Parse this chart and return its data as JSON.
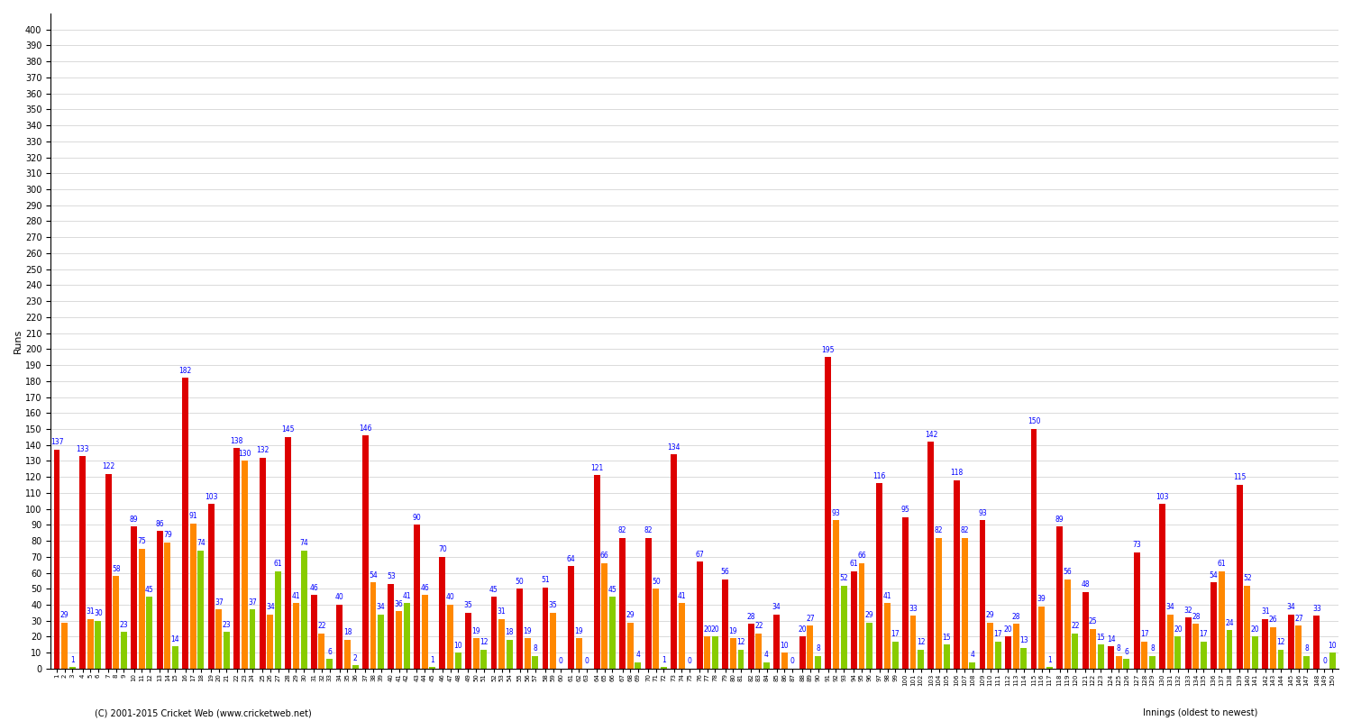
{
  "title": "",
  "ylabel": "Runs",
  "footer": "(C) 2001-2015 Cricket Web (www.cricketweb.net)",
  "footer2": "Innings (oldest to newest)",
  "ylim": [
    0,
    410
  ],
  "yticks": [
    0,
    10,
    20,
    30,
    40,
    50,
    60,
    70,
    80,
    90,
    100,
    110,
    120,
    130,
    140,
    150,
    160,
    170,
    180,
    190,
    200,
    210,
    220,
    230,
    240,
    250,
    260,
    270,
    280,
    290,
    300,
    310,
    320,
    330,
    340,
    350,
    360,
    370,
    380,
    390,
    400
  ],
  "bar_colors": [
    "#dd0000",
    "#ff8800",
    "#88cc00"
  ],
  "innings": [
    {
      "num": "1",
      "val": 137,
      "color_idx": 0
    },
    {
      "num": "2",
      "val": 29,
      "color_idx": 1
    },
    {
      "num": "3",
      "val": 1,
      "color_idx": 2
    },
    {
      "num": "4",
      "val": 133,
      "color_idx": 0
    },
    {
      "num": "5",
      "val": 31,
      "color_idx": 1
    },
    {
      "num": "6",
      "val": 30,
      "color_idx": 2
    },
    {
      "num": "7",
      "val": 122,
      "color_idx": 0
    },
    {
      "num": "8",
      "val": 58,
      "color_idx": 1
    },
    {
      "num": "9",
      "val": 23,
      "color_idx": 2
    },
    {
      "num": "10",
      "val": 89,
      "color_idx": 0
    },
    {
      "num": "11",
      "val": 75,
      "color_idx": 1
    },
    {
      "num": "12",
      "val": 45,
      "color_idx": 2
    },
    {
      "num": "13",
      "val": 86,
      "color_idx": 0
    },
    {
      "num": "14",
      "val": 79,
      "color_idx": 1
    },
    {
      "num": "15",
      "val": 14,
      "color_idx": 2
    },
    {
      "num": "16",
      "val": 182,
      "color_idx": 0
    },
    {
      "num": "17",
      "val": 91,
      "color_idx": 1
    },
    {
      "num": "18",
      "val": 74,
      "color_idx": 2
    },
    {
      "num": "19",
      "val": 103,
      "color_idx": 0
    },
    {
      "num": "20",
      "val": 37,
      "color_idx": 1
    },
    {
      "num": "21",
      "val": 23,
      "color_idx": 2
    },
    {
      "num": "22",
      "val": 138,
      "color_idx": 0
    },
    {
      "num": "23",
      "val": 130,
      "color_idx": 1
    },
    {
      "num": "24",
      "val": 37,
      "color_idx": 2
    },
    {
      "num": "25",
      "val": 132,
      "color_idx": 0
    },
    {
      "num": "26",
      "val": 34,
      "color_idx": 1
    },
    {
      "num": "27",
      "val": 61,
      "color_idx": 2
    },
    {
      "num": "28",
      "val": 145,
      "color_idx": 0
    },
    {
      "num": "29",
      "val": 41,
      "color_idx": 1
    },
    {
      "num": "30",
      "val": 74,
      "color_idx": 2
    },
    {
      "num": "31",
      "val": 46,
      "color_idx": 0
    },
    {
      "num": "32",
      "val": 22,
      "color_idx": 1
    },
    {
      "num": "33",
      "val": 6,
      "color_idx": 2
    },
    {
      "num": "34",
      "val": 40,
      "color_idx": 0
    },
    {
      "num": "35",
      "val": 18,
      "color_idx": 1
    },
    {
      "num": "36",
      "val": 2,
      "color_idx": 2
    },
    {
      "num": "37",
      "val": 146,
      "color_idx": 0
    },
    {
      "num": "38",
      "val": 54,
      "color_idx": 1
    },
    {
      "num": "39",
      "val": 34,
      "color_idx": 2
    },
    {
      "num": "40",
      "val": 53,
      "color_idx": 0
    },
    {
      "num": "41",
      "val": 36,
      "color_idx": 1
    },
    {
      "num": "42",
      "val": 41,
      "color_idx": 2
    },
    {
      "num": "43",
      "val": 90,
      "color_idx": 0
    },
    {
      "num": "44",
      "val": 46,
      "color_idx": 1
    },
    {
      "num": "45",
      "val": 1,
      "color_idx": 2
    },
    {
      "num": "46",
      "val": 70,
      "color_idx": 0
    },
    {
      "num": "47",
      "val": 40,
      "color_idx": 1
    },
    {
      "num": "48",
      "val": 10,
      "color_idx": 2
    },
    {
      "num": "49",
      "val": 35,
      "color_idx": 0
    },
    {
      "num": "50",
      "val": 19,
      "color_idx": 1
    },
    {
      "num": "51",
      "val": 12,
      "color_idx": 2
    },
    {
      "num": "52",
      "val": 45,
      "color_idx": 0
    },
    {
      "num": "53",
      "val": 31,
      "color_idx": 1
    },
    {
      "num": "54",
      "val": 18,
      "color_idx": 2
    },
    {
      "num": "55",
      "val": 50,
      "color_idx": 0
    },
    {
      "num": "56",
      "val": 19,
      "color_idx": 1
    },
    {
      "num": "57",
      "val": 8,
      "color_idx": 2
    },
    {
      "num": "58",
      "val": 51,
      "color_idx": 0
    },
    {
      "num": "59",
      "val": 35,
      "color_idx": 1
    },
    {
      "num": "60",
      "val": 0,
      "color_idx": 2
    },
    {
      "num": "61",
      "val": 64,
      "color_idx": 0
    },
    {
      "num": "62",
      "val": 19,
      "color_idx": 1
    },
    {
      "num": "63",
      "val": 0,
      "color_idx": 2
    },
    {
      "num": "64",
      "val": 121,
      "color_idx": 0
    },
    {
      "num": "65",
      "val": 66,
      "color_idx": 1
    },
    {
      "num": "66",
      "val": 45,
      "color_idx": 2
    },
    {
      "num": "67",
      "val": 82,
      "color_idx": 0
    },
    {
      "num": "68",
      "val": 29,
      "color_idx": 1
    },
    {
      "num": "69",
      "val": 4,
      "color_idx": 2
    },
    {
      "num": "70",
      "val": 82,
      "color_idx": 0
    },
    {
      "num": "71",
      "val": 50,
      "color_idx": 1
    },
    {
      "num": "72",
      "val": 1,
      "color_idx": 2
    },
    {
      "num": "73",
      "val": 134,
      "color_idx": 0
    },
    {
      "num": "74",
      "val": 41,
      "color_idx": 1
    },
    {
      "num": "75",
      "val": 0,
      "color_idx": 2
    },
    {
      "num": "76",
      "val": 67,
      "color_idx": 0
    },
    {
      "num": "77",
      "val": 20,
      "color_idx": 1
    },
    {
      "num": "78",
      "val": 20,
      "color_idx": 2
    },
    {
      "num": "79",
      "val": 56,
      "color_idx": 0
    },
    {
      "num": "80",
      "val": 19,
      "color_idx": 1
    },
    {
      "num": "81",
      "val": 12,
      "color_idx": 2
    },
    {
      "num": "82",
      "val": 28,
      "color_idx": 0
    },
    {
      "num": "83",
      "val": 22,
      "color_idx": 1
    },
    {
      "num": "84",
      "val": 4,
      "color_idx": 2
    },
    {
      "num": "85",
      "val": 34,
      "color_idx": 0
    },
    {
      "num": "86",
      "val": 10,
      "color_idx": 1
    },
    {
      "num": "87",
      "val": 0,
      "color_idx": 2
    },
    {
      "num": "88",
      "val": 20,
      "color_idx": 0
    },
    {
      "num": "89",
      "val": 27,
      "color_idx": 1
    },
    {
      "num": "90",
      "val": 8,
      "color_idx": 2
    },
    {
      "num": "91",
      "val": 195,
      "color_idx": 0
    },
    {
      "num": "92",
      "val": 93,
      "color_idx": 1
    },
    {
      "num": "93",
      "val": 52,
      "color_idx": 2
    },
    {
      "num": "94",
      "val": 61,
      "color_idx": 0
    },
    {
      "num": "95",
      "val": 66,
      "color_idx": 1
    },
    {
      "num": "96",
      "val": 29,
      "color_idx": 2
    },
    {
      "num": "97",
      "val": 116,
      "color_idx": 0
    },
    {
      "num": "98",
      "val": 41,
      "color_idx": 1
    },
    {
      "num": "99",
      "val": 17,
      "color_idx": 2
    },
    {
      "num": "100",
      "val": 95,
      "color_idx": 0
    },
    {
      "num": "101",
      "val": 33,
      "color_idx": 1
    },
    {
      "num": "102",
      "val": 12,
      "color_idx": 2
    },
    {
      "num": "103",
      "val": 142,
      "color_idx": 0
    },
    {
      "num": "104",
      "val": 82,
      "color_idx": 1
    },
    {
      "num": "105",
      "val": 15,
      "color_idx": 2
    },
    {
      "num": "106",
      "val": 118,
      "color_idx": 0
    },
    {
      "num": "107",
      "val": 82,
      "color_idx": 1
    },
    {
      "num": "108",
      "val": 4,
      "color_idx": 2
    },
    {
      "num": "109",
      "val": 93,
      "color_idx": 0
    },
    {
      "num": "110",
      "val": 29,
      "color_idx": 1
    },
    {
      "num": "111",
      "val": 17,
      "color_idx": 2
    },
    {
      "num": "112",
      "val": 20,
      "color_idx": 0
    },
    {
      "num": "113",
      "val": 28,
      "color_idx": 1
    },
    {
      "num": "114",
      "val": 13,
      "color_idx": 2
    },
    {
      "num": "115",
      "val": 150,
      "color_idx": 0
    },
    {
      "num": "116",
      "val": 39,
      "color_idx": 1
    },
    {
      "num": "117",
      "val": 1,
      "color_idx": 2
    },
    {
      "num": "118",
      "val": 89,
      "color_idx": 0
    },
    {
      "num": "119",
      "val": 56,
      "color_idx": 1
    },
    {
      "num": "120",
      "val": 22,
      "color_idx": 2
    },
    {
      "num": "121",
      "val": 48,
      "color_idx": 0
    },
    {
      "num": "122",
      "val": 25,
      "color_idx": 1
    },
    {
      "num": "123",
      "val": 15,
      "color_idx": 2
    },
    {
      "num": "124",
      "val": 14,
      "color_idx": 0
    },
    {
      "num": "125",
      "val": 8,
      "color_idx": 1
    },
    {
      "num": "126",
      "val": 6,
      "color_idx": 2
    },
    {
      "num": "127",
      "val": 73,
      "color_idx": 0
    },
    {
      "num": "128",
      "val": 17,
      "color_idx": 1
    },
    {
      "num": "129",
      "val": 8,
      "color_idx": 2
    },
    {
      "num": "130",
      "val": 103,
      "color_idx": 0
    },
    {
      "num": "131",
      "val": 34,
      "color_idx": 1
    },
    {
      "num": "132",
      "val": 20,
      "color_idx": 2
    },
    {
      "num": "133",
      "val": 32,
      "color_idx": 0
    },
    {
      "num": "134",
      "val": 28,
      "color_idx": 1
    },
    {
      "num": "135",
      "val": 17,
      "color_idx": 2
    },
    {
      "num": "136",
      "val": 54,
      "color_idx": 0
    },
    {
      "num": "137",
      "val": 61,
      "color_idx": 1
    },
    {
      "num": "138",
      "val": 24,
      "color_idx": 2
    },
    {
      "num": "139",
      "val": 115,
      "color_idx": 0
    },
    {
      "num": "140",
      "val": 52,
      "color_idx": 1
    },
    {
      "num": "141",
      "val": 20,
      "color_idx": 2
    },
    {
      "num": "142",
      "val": 31,
      "color_idx": 0
    },
    {
      "num": "143",
      "val": 26,
      "color_idx": 1
    },
    {
      "num": "144",
      "val": 12,
      "color_idx": 2
    },
    {
      "num": "145",
      "val": 34,
      "color_idx": 0
    },
    {
      "num": "146",
      "val": 27,
      "color_idx": 1
    },
    {
      "num": "147",
      "val": 8,
      "color_idx": 2
    },
    {
      "num": "148",
      "val": 33,
      "color_idx": 0
    },
    {
      "num": "149",
      "val": 0,
      "color_idx": 1
    },
    {
      "num": "150",
      "val": 10,
      "color_idx": 2
    }
  ]
}
